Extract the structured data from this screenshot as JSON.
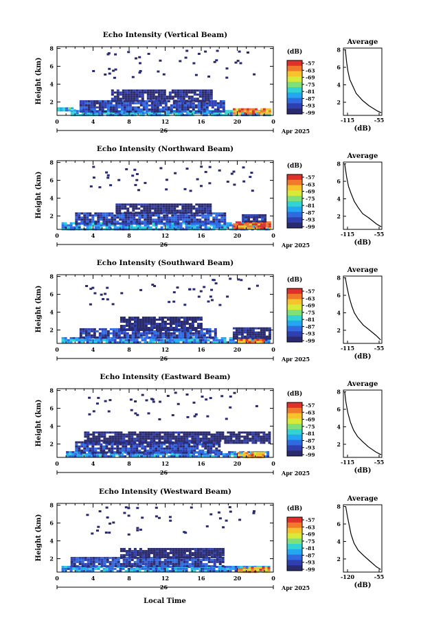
{
  "figure": {
    "xlabel": "Local Time",
    "date_label": "26",
    "month_label": "Apr 2025",
    "ylabel": "Height (km)",
    "colorbar_unit": "(dB)",
    "colorbar_ticks": [
      "-57",
      "-63",
      "-69",
      "-75",
      "-81",
      "-87",
      "-93",
      "-99"
    ],
    "avg_title": "Average",
    "avg_xlabel": "(dB)",
    "colors": {
      "scale": [
        "#2a2a6e",
        "#2f3fb0",
        "#2f6ae0",
        "#22a7f0",
        "#33d3d3",
        "#7fe07a",
        "#d7ea3a",
        "#f6c32c",
        "#f07a2a",
        "#e0302a"
      ]
    }
  },
  "chart_data": [
    {
      "type": "heatmap",
      "title": "Echo Intensity (Vertical Beam)",
      "xlabel": "Local Time",
      "ylabel": "Height (km)",
      "x_ticks": [
        "0",
        "4",
        "8",
        "12",
        "16",
        "20",
        "0"
      ],
      "y_ticks": [
        "2",
        "4",
        "6",
        "8"
      ],
      "xlim": [
        0,
        24
      ],
      "ylim": [
        0.5,
        8.2
      ],
      "value_range_db": [
        -99,
        -57
      ],
      "layers": [
        {
          "x0": 1.5,
          "x1": 23.5,
          "y0": 0.6,
          "y1": 1.1,
          "db": -84
        },
        {
          "x0": 2.5,
          "x1": 18.5,
          "y0": 1.0,
          "y1": 2.2,
          "db": -93
        },
        {
          "x0": 6.0,
          "x1": 17.0,
          "y0": 2.1,
          "y1": 3.4,
          "db": -98
        },
        {
          "x0": 19.5,
          "x1": 23.5,
          "y0": 0.7,
          "y1": 1.3,
          "db": -64
        },
        {
          "x0": 0.0,
          "x1": 2.0,
          "y0": 1.0,
          "y1": 1.4,
          "db": -82
        }
      ],
      "average": {
        "x_ticks": [
          "-115",
          "-55"
        ],
        "xlim": [
          -115,
          -55
        ],
        "y_ticks": [
          "2",
          "4",
          "6",
          "8"
        ],
        "points": [
          [
            -112,
            8.0
          ],
          [
            -110,
            6.6
          ],
          [
            -108,
            5.6
          ],
          [
            -105,
            4.6
          ],
          [
            -100,
            3.8
          ],
          [
            -95,
            3.0
          ],
          [
            -85,
            2.2
          ],
          [
            -75,
            1.6
          ],
          [
            -62,
            1.0
          ],
          [
            -56,
            0.8
          ]
        ]
      }
    },
    {
      "type": "heatmap",
      "title": "Echo Intensity (Northward Beam)",
      "xlabel": "Local Time",
      "ylabel": "Height (km)",
      "x_ticks": [
        "0",
        "4",
        "8",
        "12",
        "16",
        "20",
        "0"
      ],
      "y_ticks": [
        "2",
        "4",
        "6",
        "8"
      ],
      "xlim": [
        0,
        24
      ],
      "ylim": [
        0.5,
        8.2
      ],
      "value_range_db": [
        -99,
        -57
      ],
      "layers": [
        {
          "x0": 0.5,
          "x1": 23.5,
          "y0": 0.6,
          "y1": 1.3,
          "db": -85
        },
        {
          "x0": 2.0,
          "x1": 18.5,
          "y0": 1.2,
          "y1": 2.4,
          "db": -93
        },
        {
          "x0": 6.5,
          "x1": 17.0,
          "y0": 2.3,
          "y1": 3.4,
          "db": -98
        },
        {
          "x0": 19.5,
          "x1": 23.5,
          "y0": 0.7,
          "y1": 1.4,
          "db": -62
        },
        {
          "x0": 20.5,
          "x1": 23.0,
          "y0": 1.4,
          "y1": 2.2,
          "db": -96
        }
      ],
      "average": {
        "x_ticks": [
          "-115",
          "-55"
        ],
        "xlim": [
          -115,
          -55
        ],
        "y_ticks": [
          "2",
          "4",
          "6",
          "8"
        ],
        "points": [
          [
            -113,
            8.0
          ],
          [
            -110,
            6.5
          ],
          [
            -107,
            5.4
          ],
          [
            -103,
            4.6
          ],
          [
            -98,
            3.7
          ],
          [
            -92,
            3.0
          ],
          [
            -85,
            2.3
          ],
          [
            -75,
            1.8
          ],
          [
            -63,
            1.1
          ],
          [
            -56,
            0.8
          ]
        ]
      }
    },
    {
      "type": "heatmap",
      "title": "Echo Intensity (Southward Beam)",
      "xlabel": "Local Time",
      "ylabel": "Height (km)",
      "x_ticks": [
        "0",
        "4",
        "8",
        "12",
        "16",
        "20",
        "0"
      ],
      "y_ticks": [
        "2",
        "4",
        "6",
        "8"
      ],
      "xlim": [
        0,
        24
      ],
      "ylim": [
        0.5,
        8.2
      ],
      "value_range_db": [
        -99,
        -57
      ],
      "layers": [
        {
          "x0": 0.5,
          "x1": 23.5,
          "y0": 0.6,
          "y1": 1.2,
          "db": -86
        },
        {
          "x0": 2.5,
          "x1": 17.5,
          "y0": 1.1,
          "y1": 2.2,
          "db": -93
        },
        {
          "x0": 7.0,
          "x1": 16.0,
          "y0": 2.1,
          "y1": 3.5,
          "db": -98
        },
        {
          "x0": 19.5,
          "x1": 23.5,
          "y0": 1.0,
          "y1": 2.3,
          "db": -98
        },
        {
          "x0": 20.0,
          "x1": 23.0,
          "y0": 0.6,
          "y1": 1.0,
          "db": -66
        }
      ],
      "average": {
        "x_ticks": [
          "-115",
          "-55"
        ],
        "xlim": [
          -115,
          -55
        ],
        "y_ticks": [
          "2",
          "4",
          "6",
          "8"
        ],
        "points": [
          [
            -112,
            8.0
          ],
          [
            -109,
            6.8
          ],
          [
            -106,
            5.8
          ],
          [
            -102,
            4.8
          ],
          [
            -98,
            4.0
          ],
          [
            -92,
            3.3
          ],
          [
            -84,
            2.6
          ],
          [
            -74,
            2.0
          ],
          [
            -64,
            1.4
          ],
          [
            -57,
            0.9
          ]
        ]
      }
    },
    {
      "type": "heatmap",
      "title": "Echo Intensity (Eastward Beam)",
      "xlabel": "Local Time",
      "ylabel": "Height (km)",
      "x_ticks": [
        "0",
        "4",
        "8",
        "12",
        "16",
        "20",
        "0"
      ],
      "y_ticks": [
        "2",
        "4",
        "6",
        "8"
      ],
      "xlim": [
        0,
        24
      ],
      "ylim": [
        0.5,
        8.2
      ],
      "value_range_db": [
        -99,
        -57
      ],
      "layers": [
        {
          "x0": 1.0,
          "x1": 23.5,
          "y0": 0.6,
          "y1": 1.2,
          "db": -86
        },
        {
          "x0": 2.0,
          "x1": 18.0,
          "y0": 1.1,
          "y1": 2.3,
          "db": -93
        },
        {
          "x0": 3.0,
          "x1": 23.5,
          "y0": 2.2,
          "y1": 3.4,
          "db": -98
        },
        {
          "x0": 20.0,
          "x1": 23.0,
          "y0": 0.6,
          "y1": 1.1,
          "db": -65
        }
      ],
      "average": {
        "x_ticks": [
          "-115",
          "-55"
        ],
        "xlim": [
          -115,
          -55
        ],
        "y_ticks": [
          "2",
          "4",
          "6",
          "8"
        ],
        "points": [
          [
            -113,
            8.0
          ],
          [
            -111,
            6.8
          ],
          [
            -108,
            5.6
          ],
          [
            -104,
            4.5
          ],
          [
            -99,
            3.6
          ],
          [
            -93,
            2.9
          ],
          [
            -85,
            2.3
          ],
          [
            -76,
            1.7
          ],
          [
            -64,
            1.1
          ],
          [
            -56,
            0.8
          ]
        ]
      }
    },
    {
      "type": "heatmap",
      "title": "Echo Intensity (Westward Beam)",
      "xlabel": "Local Time",
      "ylabel": "Height (km)",
      "x_ticks": [
        "0",
        "4",
        "8",
        "12",
        "16",
        "20",
        "0"
      ],
      "y_ticks": [
        "2",
        "4",
        "6",
        "8"
      ],
      "xlim": [
        0,
        24
      ],
      "ylim": [
        0.5,
        8.2
      ],
      "value_range_db": [
        -99,
        -57
      ],
      "layers": [
        {
          "x0": 0.5,
          "x1": 23.5,
          "y0": 0.6,
          "y1": 1.2,
          "db": -86
        },
        {
          "x0": 1.5,
          "x1": 18.5,
          "y0": 1.1,
          "y1": 2.2,
          "db": -93
        },
        {
          "x0": 7.0,
          "x1": 18.5,
          "y0": 2.1,
          "y1": 3.2,
          "db": -98
        },
        {
          "x0": 20.0,
          "x1": 23.5,
          "y0": 0.6,
          "y1": 1.1,
          "db": -66
        }
      ],
      "average": {
        "x_ticks": [
          "-120",
          "-55"
        ],
        "xlim": [
          -120,
          -55
        ],
        "y_ticks": [
          "2",
          "4",
          "6",
          "8"
        ],
        "points": [
          [
            -116,
            8.0
          ],
          [
            -113,
            6.8
          ],
          [
            -110,
            5.8
          ],
          [
            -107,
            4.8
          ],
          [
            -102,
            3.8
          ],
          [
            -95,
            3.0
          ],
          [
            -86,
            2.4
          ],
          [
            -76,
            1.8
          ],
          [
            -64,
            1.1
          ],
          [
            -57,
            0.8
          ]
        ]
      }
    }
  ]
}
